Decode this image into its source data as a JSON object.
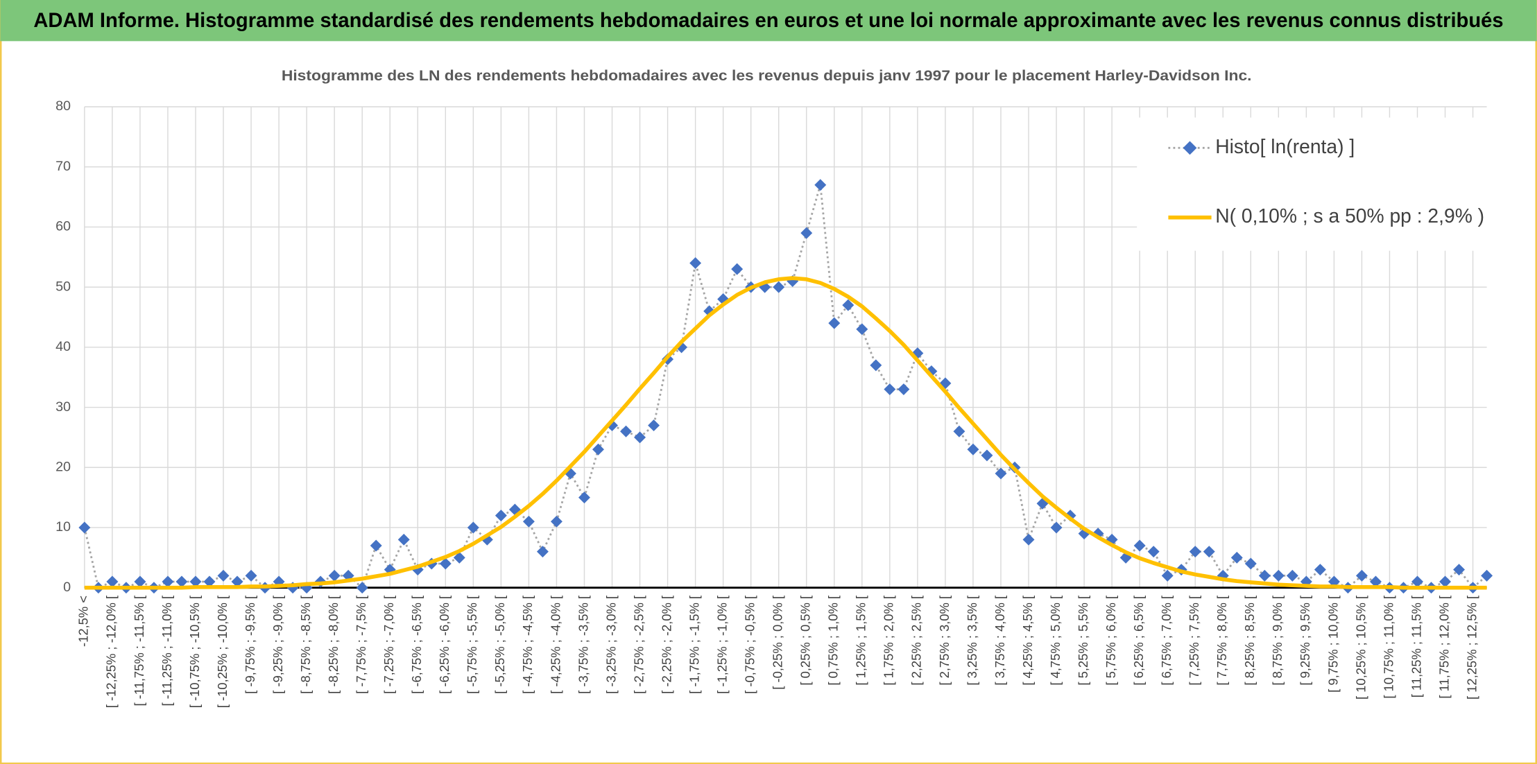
{
  "header": {
    "title": "ADAM Informe. Histogramme standardisé des rendements hebdomadaires en euros et une loi normale approximante avec les revenus connus distribués"
  },
  "chart_data": {
    "type": "line",
    "title": "Histogramme des LN des rendements hebdomadaires avec les revenus depuis janv 1997 pour le placement Harley-Davidson Inc.",
    "categories": [
      "-12,5% <",
      null,
      "[ -12,25% ; -12,0% [",
      null,
      "[ -11,75% ; -11,5% [",
      null,
      "[ -11,25% ; -11,0% [",
      null,
      "[ -10,75% ; -10,5% [",
      null,
      "[ -10,25% ; -10,0% [",
      null,
      "[ -9,75% ; -9,5% [",
      null,
      "[ -9,25% ; -9,0% [",
      null,
      "[ -8,75% ; -8,5% [",
      null,
      "[ -8,25% ; -8,0% [",
      null,
      "[ -7,75% ; -7,5% [",
      null,
      "[ -7,25% ; -7,0% [",
      null,
      "[ -6,75% ; -6,5% [",
      null,
      "[ -6,25% ; -6,0% [",
      null,
      "[ -5,75% ; -5,5% [",
      null,
      "[ -5,25% ; -5,0% [",
      null,
      "[ -4,75% ; -4,5% [",
      null,
      "[ -4,25% ; -4,0% [",
      null,
      "[ -3,75% ; -3,5% [",
      null,
      "[ -3,25% ; -3,0% [",
      null,
      "[ -2,75% ; -2,5% [",
      null,
      "[ -2,25% ; -2,0% [",
      null,
      "[ -1,75% ; -1,5% [",
      null,
      "[ -1,25% ; -1,0% [",
      null,
      "[ -0,75% ; -0,5% [",
      null,
      "[ -0,25% ; 0,0% [",
      null,
      "[ 0,25% ; 0,5% [",
      null,
      "[ 0,75% ; 1,0% [",
      null,
      "[ 1,25% ; 1,5% [",
      null,
      "[ 1,75% ; 2,0% [",
      null,
      "[ 2,25% ; 2,5% [",
      null,
      "[ 2,75% ; 3,0% [",
      null,
      "[ 3,25% ; 3,5% [",
      null,
      "[ 3,75% ; 4,0% [",
      null,
      "[ 4,25% ; 4,5% [",
      null,
      "[ 4,75% ; 5,0% [",
      null,
      "[ 5,25% ; 5,5% [",
      null,
      "[ 5,75% ; 6,0% [",
      null,
      "[ 6,25% ; 6,5% [",
      null,
      "[ 6,75% ; 7,0% [",
      null,
      "[ 7,25% ; 7,5% [",
      null,
      "[ 7,75% ; 8,0% [",
      null,
      "[ 8,25% ; 8,5% [",
      null,
      "[ 8,75% ; 9,0% [",
      null,
      "[ 9,25% ; 9,5% [",
      null,
      "[ 9,75% ; 10,0% [",
      null,
      "[ 10,25% ; 10,5% [",
      null,
      "[ 10,75% ; 11,0% [",
      null,
      "[ 11,25% ; 11,5% [",
      null,
      "[ 11,75% ; 12,0% [",
      null,
      "[ 12,25% ; 12,5% [",
      null
    ],
    "series": [
      {
        "name": "Histo[ ln(renta) ]",
        "color": "#4472c4",
        "line_color": "#a5a5a5",
        "values": [
          10,
          0,
          1,
          0,
          1,
          0,
          1,
          1,
          1,
          1,
          2,
          1,
          2,
          0,
          1,
          0,
          0,
          1,
          2,
          2,
          0,
          7,
          3,
          8,
          3,
          4,
          4,
          5,
          10,
          8,
          12,
          13,
          11,
          6,
          11,
          19,
          15,
          23,
          27,
          26,
          25,
          27,
          38,
          40,
          54,
          46,
          48,
          53,
          50,
          50,
          50,
          51,
          59,
          67,
          44,
          47,
          43,
          37,
          33,
          33,
          39,
          36,
          34,
          26,
          23,
          22,
          19,
          20,
          8,
          14,
          10,
          12,
          9,
          9,
          8,
          5,
          7,
          6,
          2,
          3,
          6,
          6,
          2,
          5,
          4,
          2,
          2,
          2,
          1,
          3,
          1,
          0,
          2,
          1,
          0,
          0,
          1,
          0,
          1,
          3,
          0,
          2
        ]
      },
      {
        "name": "N( 0,10% ; s a 50% pp : 2,9% )",
        "color": "#ffc000",
        "values": [
          0,
          0,
          0,
          0,
          0,
          0,
          0,
          0,
          0.1,
          0.1,
          0.1,
          0.1,
          0.2,
          0.2,
          0.3,
          0.4,
          0.6,
          0.7,
          0.9,
          1.2,
          1.5,
          1.9,
          2.3,
          2.9,
          3.5,
          4.3,
          5.1,
          6.1,
          7.3,
          8.7,
          10.1,
          11.8,
          13.6,
          15.6,
          17.8,
          20.2,
          22.6,
          25.2,
          27.8,
          30.4,
          33.1,
          35.7,
          38.4,
          40.9,
          43.1,
          45.3,
          47.1,
          48.7,
          49.9,
          50.8,
          51.3,
          51.5,
          51.3,
          50.7,
          49.7,
          48.4,
          46.8,
          44.8,
          42.7,
          40.4,
          37.8,
          35.2,
          32.6,
          29.9,
          27.3,
          24.7,
          22.1,
          19.7,
          17.4,
          15.2,
          13.3,
          11.5,
          9.8,
          8.4,
          7.1,
          5.9,
          4.9,
          4.1,
          3.4,
          2.7,
          2.2,
          1.8,
          1.4,
          1.1,
          0.9,
          0.7,
          0.5,
          0.4,
          0.3,
          0.2,
          0.2,
          0.1,
          0.1,
          0.1,
          0.1,
          0,
          0,
          0,
          0,
          0,
          0,
          0
        ]
      }
    ],
    "ylim": [
      0,
      80
    ],
    "yticks": [
      0,
      10,
      20,
      30,
      40,
      50,
      60,
      70,
      80
    ],
    "grid": true,
    "legend": "upper right"
  }
}
